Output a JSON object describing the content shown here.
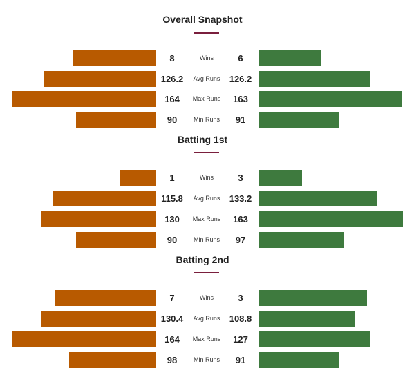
{
  "colors": {
    "left_team": "#b85a00",
    "right_team": "#3e7a3e",
    "accent": "#7a1f3d",
    "divider": "#c9c9c9"
  },
  "sections": [
    {
      "title": "Overall Snapshot",
      "rows": [
        {
          "metric": "Wins",
          "left": "8",
          "right": "6"
        },
        {
          "metric": "Avg Runs",
          "left": "126.2",
          "right": "126.2"
        },
        {
          "metric": "Max Runs",
          "left": "164",
          "right": "163"
        },
        {
          "metric": "Min Runs",
          "left": "90",
          "right": "91"
        }
      ]
    },
    {
      "title": "Batting 1st",
      "rows": [
        {
          "metric": "Wins",
          "left": "1",
          "right": "3"
        },
        {
          "metric": "Avg Runs",
          "left": "115.8",
          "right": "133.2"
        },
        {
          "metric": "Max Runs",
          "left": "130",
          "right": "163"
        },
        {
          "metric": "Min Runs",
          "left": "90",
          "right": "97"
        }
      ]
    },
    {
      "title": "Batting 2nd",
      "rows": [
        {
          "metric": "Wins",
          "left": "7",
          "right": "3"
        },
        {
          "metric": "Avg Runs",
          "left": "130.4",
          "right": "108.8"
        },
        {
          "metric": "Max Runs",
          "left": "164",
          "right": "127"
        },
        {
          "metric": "Min Runs",
          "left": "98",
          "right": "91"
        }
      ]
    }
  ]
}
